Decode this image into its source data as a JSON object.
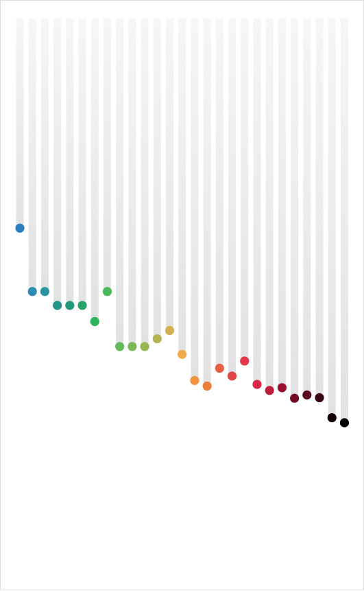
{
  "chart_data": {
    "type": "scatter",
    "title": "",
    "xlabel": "",
    "ylabel": "",
    "grid": false,
    "legend": "none",
    "x": [
      1,
      2,
      3,
      4,
      5,
      6,
      7,
      8,
      9,
      10,
      11,
      12,
      13,
      14,
      15,
      16,
      17,
      18,
      19,
      20,
      21,
      22,
      23,
      24,
      25,
      26,
      27
    ],
    "values": [
      62.3,
      50.9,
      50.9,
      48.4,
      48.4,
      48.4,
      45.5,
      50.9,
      41.0,
      41.0,
      41.0,
      42.4,
      43.9,
      39.6,
      34.9,
      33.9,
      37.1,
      35.7,
      38.4,
      34.2,
      33.1,
      33.6,
      31.7,
      32.3,
      31.8,
      28.2,
      27.3
    ],
    "colors": [
      "#2a7fbd",
      "#2c8bb0",
      "#2a95a0",
      "#219688",
      "#249a7d",
      "#2aa46a",
      "#2eb25a",
      "#4cb85a",
      "#66b85a",
      "#7ab85a",
      "#96b852",
      "#b4b550",
      "#d2b050",
      "#f0aa48",
      "#f09440",
      "#ea7e3a",
      "#e46040",
      "#e04848",
      "#e03848",
      "#d82848",
      "#c01c3c",
      "#9a1030",
      "#720a26",
      "#5a061c",
      "#3a0412",
      "#160206",
      "#000000"
    ],
    "ylim": [
      0,
      100
    ]
  }
}
